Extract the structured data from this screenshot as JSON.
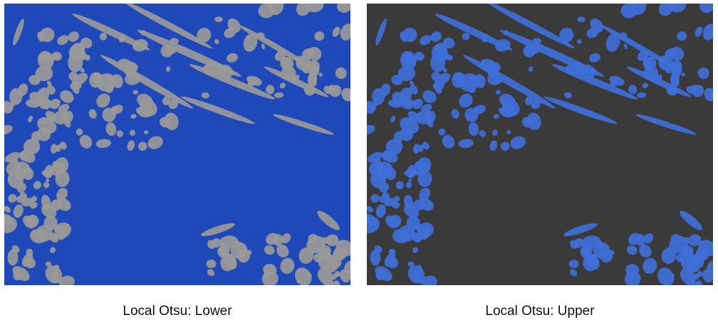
{
  "figure": {
    "panels": [
      {
        "id": "lower",
        "caption": "Local Otsu: Lower",
        "background_color": "#1f49b8",
        "particle_color": "#9a9a98"
      },
      {
        "id": "upper",
        "caption": "Local Otsu: Upper",
        "background_color": "#3a3a3a",
        "particle_color": "#3f6fd8"
      }
    ]
  }
}
